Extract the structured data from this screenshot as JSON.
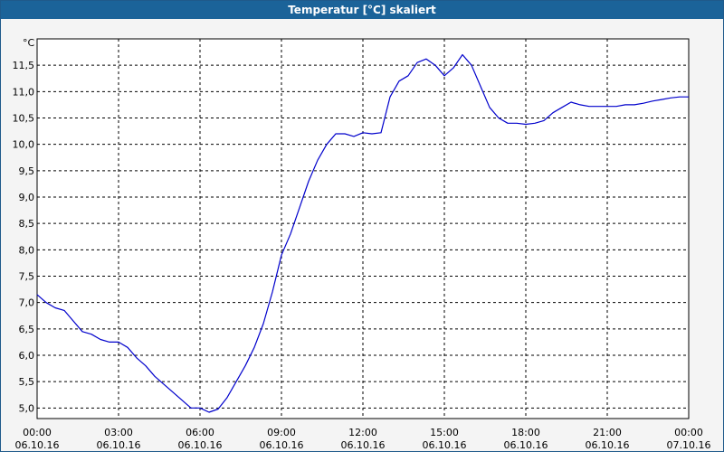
{
  "window": {
    "title": "Temperatur [°C] skaliert"
  },
  "colors": {
    "titlebar": "#1b6399",
    "line": "#0000cc",
    "grid": "#000000"
  },
  "chart_data": {
    "type": "line",
    "title": "Temperatur [°C] skaliert",
    "ylabel": "°C",
    "xlabel": "",
    "ylim": [
      4.8,
      12.0
    ],
    "xlim": [
      "06.10.16 00:00",
      "07.10.16 00:00"
    ],
    "grid": true,
    "y_ticks": [
      "5,0",
      "5,5",
      "6,0",
      "6,5",
      "7,0",
      "7,5",
      "8,0",
      "8,5",
      "9,0",
      "9,5",
      "10,0",
      "10,5",
      "11,0",
      "11,5"
    ],
    "x_ticks": [
      {
        "time": "00:00",
        "date": "06.10.16"
      },
      {
        "time": "03:00",
        "date": "06.10.16"
      },
      {
        "time": "06:00",
        "date": "06.10.16"
      },
      {
        "time": "09:00",
        "date": "06.10.16"
      },
      {
        "time": "12:00",
        "date": "06.10.16"
      },
      {
        "time": "15:00",
        "date": "06.10.16"
      },
      {
        "time": "18:00",
        "date": "06.10.16"
      },
      {
        "time": "21:00",
        "date": "06.10.16"
      },
      {
        "time": "00:00",
        "date": "07.10.16"
      }
    ],
    "series": [
      {
        "x": [
          "00:00",
          "00:20",
          "00:40",
          "01:00",
          "01:20",
          "01:40",
          "02:00",
          "02:20",
          "02:40",
          "03:00",
          "03:20",
          "03:40",
          "04:00",
          "04:20",
          "04:40",
          "05:00",
          "05:20",
          "05:40",
          "06:00",
          "06:20",
          "06:40",
          "07:00",
          "07:20",
          "07:40",
          "08:00",
          "08:20",
          "08:40",
          "09:00",
          "09:20",
          "09:40",
          "10:00",
          "10:20",
          "10:40",
          "11:00",
          "11:20",
          "11:40",
          "12:00",
          "12:20",
          "12:40",
          "13:00",
          "13:20",
          "13:40",
          "14:00",
          "14:20",
          "14:40",
          "15:00",
          "15:20",
          "15:40",
          "16:00",
          "16:20",
          "16:40",
          "17:00",
          "17:20",
          "17:40",
          "18:00",
          "18:20",
          "18:40",
          "19:00",
          "19:20",
          "19:40",
          "20:00",
          "20:20",
          "20:40",
          "21:00",
          "21:20",
          "21:40",
          "22:00",
          "22:20",
          "22:40",
          "23:00",
          "23:20",
          "23:40",
          "24:00"
        ],
        "values": [
          7.15,
          7.0,
          6.9,
          6.85,
          6.65,
          6.45,
          6.4,
          6.3,
          6.25,
          6.25,
          6.15,
          5.95,
          5.8,
          5.6,
          5.45,
          5.3,
          5.15,
          5.0,
          5.0,
          4.92,
          4.98,
          5.2,
          5.5,
          5.8,
          6.15,
          6.6,
          7.2,
          7.9,
          8.3,
          8.8,
          9.3,
          9.7,
          10.0,
          10.2,
          10.2,
          10.15,
          10.22,
          10.2,
          10.22,
          10.9,
          11.2,
          11.3,
          11.55,
          11.62,
          11.5,
          11.3,
          11.45,
          11.7,
          11.5,
          11.1,
          10.7,
          10.5,
          10.4,
          10.4,
          10.38,
          10.4,
          10.45,
          10.6,
          10.7,
          10.8,
          10.75,
          10.72,
          10.72,
          10.72,
          10.72,
          10.75,
          10.75,
          10.78,
          10.82,
          10.85,
          10.88,
          10.9,
          10.9
        ]
      }
    ]
  }
}
